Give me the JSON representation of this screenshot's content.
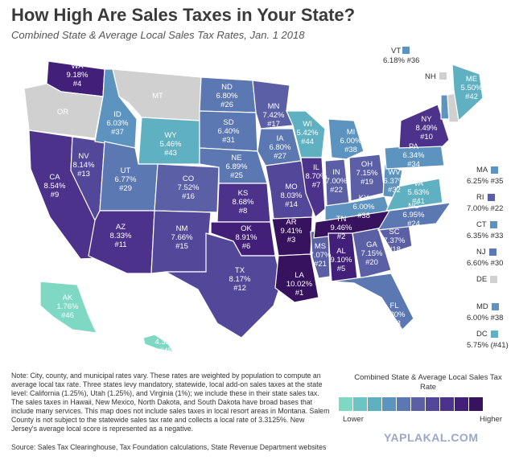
{
  "title": "How High Are Sales Taxes in Your State?",
  "subtitle": "Combined State & Average Local Sales Tax Rates, Jan. 1 2018",
  "colors": {
    "no_tax": "#d0d0d0",
    "scale": [
      "#7fd8c4",
      "#6cc5c4",
      "#5fb1c2",
      "#5d93bf",
      "#5c78b3",
      "#5a5fa6",
      "#53479a",
      "#4c328b",
      "#42207a",
      "#37125f"
    ]
  },
  "states": [
    {
      "abbr": "WA",
      "rate": "9.18%",
      "rank": "#4"
    },
    {
      "abbr": "OR",
      "rate": "",
      "rank": ""
    },
    {
      "abbr": "CA",
      "rate": "8.54%",
      "rank": "#9"
    },
    {
      "abbr": "NV",
      "rate": "8.14%",
      "rank": "#13"
    },
    {
      "abbr": "ID",
      "rate": "6.03%",
      "rank": "#37"
    },
    {
      "abbr": "MT",
      "rate": "",
      "rank": ""
    },
    {
      "abbr": "WY",
      "rate": "5.46%",
      "rank": "#43"
    },
    {
      "abbr": "UT",
      "rate": "6.77%",
      "rank": "#29"
    },
    {
      "abbr": "AZ",
      "rate": "8.33%",
      "rank": "#11"
    },
    {
      "abbr": "CO",
      "rate": "7.52%",
      "rank": "#16"
    },
    {
      "abbr": "NM",
      "rate": "7.66%",
      "rank": "#15"
    },
    {
      "abbr": "ND",
      "rate": "6.80%",
      "rank": "#26"
    },
    {
      "abbr": "SD",
      "rate": "6.40%",
      "rank": "#31"
    },
    {
      "abbr": "NE",
      "rate": "6.89%",
      "rank": "#25"
    },
    {
      "abbr": "KS",
      "rate": "8.68%",
      "rank": "#8"
    },
    {
      "abbr": "OK",
      "rate": "8.91%",
      "rank": "#6"
    },
    {
      "abbr": "TX",
      "rate": "8.17%",
      "rank": "#12"
    },
    {
      "abbr": "MN",
      "rate": "7.42%",
      "rank": "#17"
    },
    {
      "abbr": "IA",
      "rate": "6.80%",
      "rank": "#27"
    },
    {
      "abbr": "MO",
      "rate": "8.03%",
      "rank": "#14"
    },
    {
      "abbr": "AR",
      "rate": "9.41%",
      "rank": "#3"
    },
    {
      "abbr": "LA",
      "rate": "10.02%",
      "rank": "#1"
    },
    {
      "abbr": "WI",
      "rate": "5.42%",
      "rank": "#44"
    },
    {
      "abbr": "IL",
      "rate": "8.70%",
      "rank": "#7"
    },
    {
      "abbr": "MS",
      "rate": "7.07%",
      "rank": "#21"
    },
    {
      "abbr": "MI",
      "rate": "6.00%",
      "rank": "#38"
    },
    {
      "abbr": "IN",
      "rate": "7.00%",
      "rank": "#22"
    },
    {
      "abbr": "KY",
      "rate": "6.00%",
      "rank": "#38"
    },
    {
      "abbr": "TN",
      "rate": "9.46%",
      "rank": "#2"
    },
    {
      "abbr": "AL",
      "rate": "9.10%",
      "rank": "#5"
    },
    {
      "abbr": "OH",
      "rate": "7.15%",
      "rank": "#19"
    },
    {
      "abbr": "GA",
      "rate": "7.15%",
      "rank": "#20"
    },
    {
      "abbr": "FL",
      "rate": "6.80%",
      "rank": "#28"
    },
    {
      "abbr": "SC",
      "rate": "7.37%",
      "rank": "#18"
    },
    {
      "abbr": "NC",
      "rate": "6.95%",
      "rank": "#24"
    },
    {
      "abbr": "WV",
      "rate": "6.37%",
      "rank": "#32"
    },
    {
      "abbr": "VA",
      "rate": "5.63%",
      "rank": "#41"
    },
    {
      "abbr": "PA",
      "rate": "6.34%",
      "rank": "#34"
    },
    {
      "abbr": "NY",
      "rate": "8.49%",
      "rank": "#10"
    },
    {
      "abbr": "VT",
      "rate": "6.18%",
      "rank": "#36"
    },
    {
      "abbr": "NH",
      "rate": "",
      "rank": ""
    },
    {
      "abbr": "ME",
      "rate": "5.50%",
      "rank": "#42"
    },
    {
      "abbr": "AK",
      "rate": "1.76%",
      "rank": "#46"
    },
    {
      "abbr": "HI",
      "rate": "4.35%",
      "rank": "#45"
    }
  ],
  "side_states": [
    {
      "abbr": "MA",
      "value": "6.25% #35"
    },
    {
      "abbr": "RI",
      "value": "7.00% #22"
    },
    {
      "abbr": "CT",
      "value": "6.35% #33"
    },
    {
      "abbr": "NJ",
      "value": "6.60% #30"
    },
    {
      "abbr": "DE",
      "value": ""
    },
    {
      "abbr": "MD",
      "value": "6.00% #38"
    },
    {
      "abbr": "DC",
      "value": "5.75% (#41)"
    }
  ],
  "vt_callout": {
    "abbr": "VT",
    "value": "6.18% #36"
  },
  "nh_callout": {
    "abbr": "NH"
  },
  "note": "Note: City, county, and municipal rates vary. These rates are weighted by population to compute an average local tax rate. Three states levy mandatory, statewide, local add-on sales taxes at the state level: California (1.25%), Utah (1.25%), and Virginia (1%); we include these in their state sales tax. The sales taxes in Hawaii, New Mexico, North Dakota, and South Dakota have broad bases that include many services. This map does not include sales taxes in local resort areas in Montana. Salem County is not subject to the statewide sales tax rate and collects a local rate of 3.3125%. New Jersey's average local score is represented as a negative.",
  "source": "Source: Sales Tax Clearinghouse, Tax Foundation calculations, State Revenue Department websites",
  "legend": {
    "title": "Combined State & Average Local Sales Tax Rate",
    "low": "Lower",
    "high": "Higher"
  },
  "watermark": "YAPLAKAL.COM"
}
